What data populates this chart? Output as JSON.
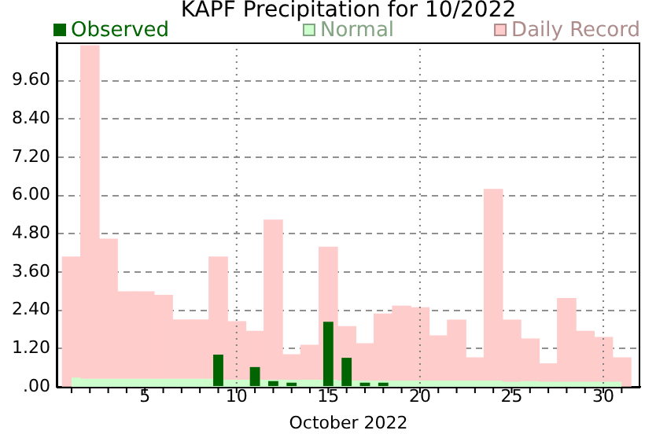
{
  "chart_data": {
    "type": "bar",
    "title": "KAPF Precipitation for 10/2022",
    "xlabel": "October 2022",
    "x": [
      1,
      2,
      3,
      4,
      5,
      6,
      7,
      8,
      9,
      10,
      11,
      12,
      13,
      14,
      15,
      16,
      17,
      18,
      19,
      20,
      21,
      22,
      23,
      24,
      25,
      26,
      27,
      28,
      29,
      30,
      31
    ],
    "series": [
      {
        "name": "Observed",
        "color": "#006400",
        "values": [
          0,
          0,
          0,
          0,
          0,
          0,
          0,
          0,
          1.01,
          0,
          0.62,
          0.18,
          0.13,
          0,
          2.04,
          0.91,
          0.13,
          0.13,
          0,
          0,
          0,
          0,
          0,
          0,
          0,
          0,
          0,
          0,
          0,
          0,
          0
        ]
      },
      {
        "name": "Normal",
        "type": "area",
        "color": "#ccffcc",
        "values": [
          0.29,
          0.25,
          0.25,
          0.25,
          0.25,
          0.25,
          0.25,
          0.25,
          null,
          0.22,
          0.22,
          0.22,
          0.22,
          0.22,
          null,
          null,
          0.2,
          0.2,
          0.2,
          0.2,
          0.2,
          0.2,
          0.2,
          0.2,
          0.16,
          0.18,
          0.16,
          0.16,
          0.16,
          0.16,
          0.16
        ]
      },
      {
        "name": "Daily Record",
        "color": "#ffcccc",
        "values": [
          4.07,
          10.7,
          4.63,
          2.98,
          2.98,
          2.87,
          2.1,
          2.1,
          4.07,
          2.04,
          1.74,
          5.23,
          1.01,
          1.3,
          4.38,
          1.89,
          1.35,
          2.28,
          2.53,
          2.48,
          1.6,
          2.09,
          0.91,
          6.19,
          2.09,
          1.5,
          0.72,
          2.77,
          1.74,
          1.55,
          0.91
        ]
      }
    ],
    "xlim": [
      0.7,
      31.5
    ],
    "xticks": [
      {
        "value": 1,
        "label": null
      },
      {
        "value": 2,
        "label": null
      },
      {
        "value": 3,
        "label": null
      },
      {
        "value": 4,
        "label": null
      },
      5,
      {
        "value": 6,
        "label": null
      },
      {
        "value": 7,
        "label": null
      },
      {
        "value": 8,
        "label": null
      },
      {
        "value": 9,
        "label": null
      },
      10,
      {
        "value": 11,
        "label": null
      },
      {
        "value": 12,
        "label": null
      },
      {
        "value": 13,
        "label": null
      },
      {
        "value": 14,
        "label": null
      },
      15,
      {
        "value": 16,
        "label": null
      },
      {
        "value": 17,
        "label": null
      },
      {
        "value": 18,
        "label": null
      },
      {
        "value": 19,
        "label": null
      },
      20,
      {
        "value": 21,
        "label": null
      },
      {
        "value": 22,
        "label": null
      },
      {
        "value": 23,
        "label": null
      },
      {
        "value": 24,
        "label": null
      },
      25,
      {
        "value": 26,
        "label": null
      },
      {
        "value": 27,
        "label": null
      },
      {
        "value": 28,
        "label": null
      },
      {
        "value": 29,
        "label": null
      },
      30,
      {
        "value": 31,
        "label": null
      }
    ],
    "ylim": [
      0,
      10.8
    ],
    "yticks": [
      {
        "value": 0,
        "label": ".00"
      },
      {
        "value": 1.2,
        "label": "1.20"
      },
      {
        "value": 2.4,
        "label": "2.40"
      },
      {
        "value": 3.6,
        "label": "3.60"
      },
      {
        "value": 4.8,
        "label": "4.80"
      },
      {
        "value": 6,
        "label": "6.00"
      },
      {
        "value": 7.2,
        "label": "7.20"
      },
      {
        "value": 8.4,
        "label": "8.40"
      },
      {
        "value": 9.6,
        "label": "9.60"
      }
    ],
    "grid": "y",
    "legend": "top",
    "ref_lines": [
      {
        "axis": "x",
        "value": 10,
        "color": "#808080",
        "line_style": "dotted"
      },
      {
        "axis": "x",
        "value": 20,
        "color": "#808080",
        "line_style": "dotted"
      },
      {
        "axis": "x",
        "value": 30,
        "color": "#808080",
        "line_style": "dotted"
      }
    ]
  }
}
